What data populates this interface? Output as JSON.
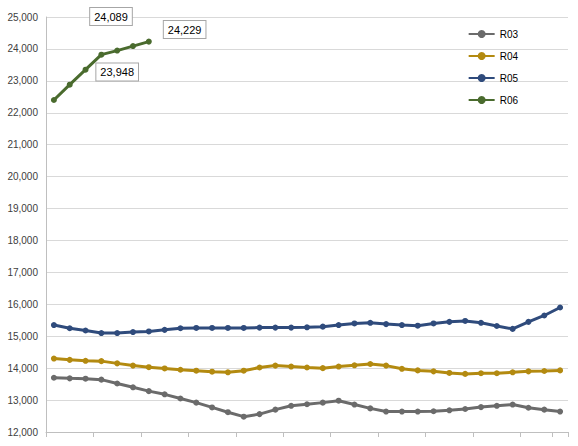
{
  "chart_data": {
    "type": "line",
    "categories": [
      null,
      null,
      null,
      null,
      null,
      null,
      null,
      null,
      null,
      null,
      null,
      null,
      null,
      null,
      null,
      null,
      null,
      null,
      null,
      null,
      null,
      null,
      null,
      null,
      null,
      null,
      null,
      null,
      null,
      null,
      null,
      null,
      null
    ],
    "series": [
      {
        "name": "R03",
        "color": "#6b6b6b",
        "marker": "circle",
        "values": [
          13700,
          13680,
          13670,
          13640,
          13520,
          13400,
          13280,
          13180,
          13050,
          12920,
          12770,
          12620,
          12480,
          12560,
          12700,
          12820,
          12870,
          12920,
          12980,
          12860,
          12740,
          12640,
          12640,
          12640,
          12650,
          12680,
          12720,
          12780,
          12820,
          12860,
          12760,
          12700,
          12640
        ]
      },
      {
        "name": "R04",
        "color": "#b38a10",
        "marker": "circle",
        "values": [
          14300,
          14260,
          14230,
          14220,
          14150,
          14080,
          14030,
          13990,
          13950,
          13920,
          13890,
          13870,
          13920,
          14020,
          14080,
          14050,
          14020,
          14000,
          14050,
          14090,
          14130,
          14080,
          13980,
          13930,
          13900,
          13850,
          13820,
          13840,
          13840,
          13870,
          13900,
          13910,
          13930
        ]
      },
      {
        "name": "R05",
        "color": "#2f4b7c",
        "marker": "circle",
        "values": [
          15350,
          15250,
          15180,
          15100,
          15100,
          15130,
          15150,
          15200,
          15250,
          15260,
          15260,
          15260,
          15260,
          15270,
          15270,
          15270,
          15280,
          15300,
          15350,
          15400,
          15420,
          15380,
          15350,
          15330,
          15400,
          15450,
          15480,
          15420,
          15320,
          15230,
          15450,
          15650,
          15900
        ]
      },
      {
        "name": "R06",
        "color": "#4a6b2e",
        "marker": "circle",
        "values": [
          22400,
          22880,
          23350,
          23820,
          23948,
          24089,
          24229,
          null,
          null,
          null,
          null,
          null,
          null,
          null,
          null,
          null,
          null,
          null,
          null,
          null,
          null,
          null,
          null,
          null,
          null,
          null,
          null,
          null,
          null,
          null,
          null,
          null,
          null
        ],
        "value_labels": [
          null,
          null,
          null,
          null,
          "23,948",
          "24,089",
          "24,229",
          null,
          null,
          null,
          null,
          null,
          null,
          null,
          null,
          null,
          null,
          null,
          null,
          null,
          null,
          null,
          null,
          null,
          null,
          null,
          null,
          null,
          null,
          null,
          null,
          null,
          null
        ]
      }
    ],
    "ylim": [
      12000,
      25000
    ],
    "yticks": [
      {
        "value": 12000,
        "label": "12,000"
      },
      {
        "value": 13000,
        "label": "13,000"
      },
      {
        "value": 14000,
        "label": "14,000"
      },
      {
        "value": 15000,
        "label": "15,000"
      },
      {
        "value": 16000,
        "label": "16,000"
      },
      {
        "value": 17000,
        "label": "17,000"
      },
      {
        "value": 18000,
        "label": "18,000"
      },
      {
        "value": 19000,
        "label": "19,000"
      },
      {
        "value": 20000,
        "label": "20,000"
      },
      {
        "value": 21000,
        "label": "21,000"
      },
      {
        "value": 22000,
        "label": "22,000"
      },
      {
        "value": 23000,
        "label": "23,000"
      },
      {
        "value": 24000,
        "label": "24,000"
      },
      {
        "value": 25000,
        "label": "25,000"
      }
    ],
    "grid": true,
    "legend": "upper right"
  }
}
